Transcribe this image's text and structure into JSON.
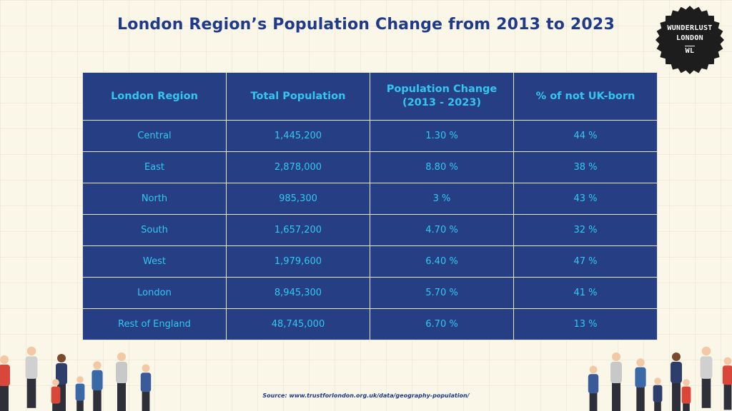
{
  "title": "London Region’s Population Change from 2013 to 2023",
  "badge": {
    "line1": "WUNDERLUST",
    "line2": "LONDON",
    "line3": "WL"
  },
  "table": {
    "headers": [
      "London Region",
      "Total Population",
      "Population Change\n(2013 - 2023)",
      "% of not UK-born"
    ],
    "rows": [
      [
        "Central",
        "1,445,200",
        "1.30 %",
        "44 %"
      ],
      [
        "East",
        "2,878,000",
        "8.80 %",
        "38 %"
      ],
      [
        "North",
        "985,300",
        "3 %",
        "43 %"
      ],
      [
        "South",
        "1,657,200",
        "4.70 %",
        "32 %"
      ],
      [
        "West",
        "1,979,600",
        "6.40 %",
        "47 %"
      ],
      [
        "London",
        "8,945,300",
        "5.70 %",
        "41 %"
      ],
      [
        "Rest of England",
        "48,745,000",
        "6.70 %",
        "13 %"
      ]
    ]
  },
  "source": "Source: www.trustforlondon.org.uk/data/geography-population/",
  "colors": {
    "title": "#1f3a8a",
    "cell_bg": "#263f84",
    "cell_text": "#34c6f0",
    "badge": "#1d1d1d"
  }
}
